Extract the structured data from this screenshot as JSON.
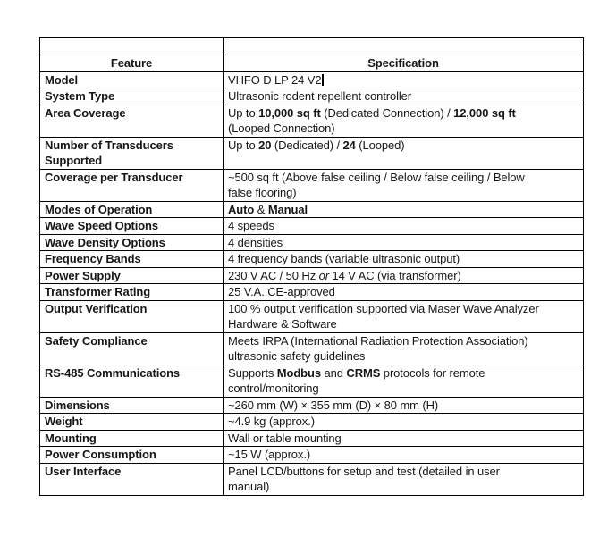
{
  "page": {
    "background": "#ffffff"
  },
  "table": {
    "border_color": "#000000",
    "text_color": "#161616",
    "header": {
      "feature": "Feature",
      "specification": "Specification"
    },
    "cursor": {
      "location_row": "Model",
      "after_text": "VHFO D LP 24 V2"
    },
    "rows": [
      {
        "feature": "Model",
        "caret": true,
        "spec": [
          {
            "t": "VHFO D LP 24 V2"
          }
        ]
      },
      {
        "feature": "System Type",
        "spec": [
          {
            "t": "Ultrasonic rodent repellent controller"
          }
        ]
      },
      {
        "feature": "Area Coverage",
        "spec": [
          {
            "t": "Up to "
          },
          {
            "t": "10,000 sq ft",
            "b": 1
          },
          {
            "t": " (Dedicated Connection) / "
          },
          {
            "t": "12,000 sq ft",
            "b": 1
          },
          {
            "br": 1
          },
          {
            "t": "(Looped Connection)"
          }
        ]
      },
      {
        "feature": "Number of Transducers Supported",
        "spec": [
          {
            "t": "Up to "
          },
          {
            "t": "20",
            "b": 1
          },
          {
            "t": " (Dedicated) / "
          },
          {
            "t": "24",
            "b": 1
          },
          {
            "t": " (Looped)"
          }
        ]
      },
      {
        "feature": "Coverage per Transducer",
        "spec": [
          {
            "t": "~500 sq ft (Above false ceiling / Below false ceiling / Below"
          },
          {
            "br": 1
          },
          {
            "t": "false flooring)"
          }
        ]
      },
      {
        "feature": "Modes of Operation",
        "spec": [
          {
            "t": "Auto",
            "b": 1
          },
          {
            "t": " & "
          },
          {
            "t": "Manual",
            "b": 1
          }
        ]
      },
      {
        "feature": "Wave Speed Options",
        "spec": [
          {
            "t": "4 speeds"
          }
        ]
      },
      {
        "feature": "Wave Density Options",
        "spec": [
          {
            "t": "4 densities"
          }
        ]
      },
      {
        "feature": "Frequency Bands",
        "spec": [
          {
            "t": "4 frequency bands (variable ultrasonic output)"
          }
        ]
      },
      {
        "feature": "Power Supply",
        "spec": [
          {
            "t": "230 V AC / 50 Hz "
          },
          {
            "t": "or",
            "i": 1
          },
          {
            "t": " 14 V AC (via transformer)"
          }
        ]
      },
      {
        "feature": "Transformer Rating",
        "spec": [
          {
            "t": "25 V.A. CE-approved"
          }
        ]
      },
      {
        "feature": "Output Verification",
        "spec": [
          {
            "t": "100 % output verification supported via Maser Wave Analyzer"
          },
          {
            "br": 1
          },
          {
            "t": "Hardware & Software"
          }
        ]
      },
      {
        "feature": "Safety Compliance",
        "spec": [
          {
            "t": "Meets IRPA (International Radiation Protection Association)"
          },
          {
            "br": 1
          },
          {
            "t": "ultrasonic safety guidelines"
          }
        ]
      },
      {
        "feature": "RS-485 Communications",
        "spec": [
          {
            "t": "Supports "
          },
          {
            "t": "Modbus",
            "b": 1
          },
          {
            "t": " and "
          },
          {
            "t": "CRMS",
            "b": 1
          },
          {
            "t": " protocols for remote"
          },
          {
            "br": 1
          },
          {
            "t": "control/monitoring"
          }
        ]
      },
      {
        "feature": "Dimensions",
        "spec": [
          {
            "t": "~260 mm (W) × 355 mm (D) × 80 mm (H)"
          }
        ]
      },
      {
        "feature": "Weight",
        "spec": [
          {
            "t": "~4.9 kg (approx.)"
          }
        ]
      },
      {
        "feature": "Mounting",
        "spec": [
          {
            "t": "Wall or table mounting"
          }
        ]
      },
      {
        "feature": "Power Consumption",
        "spec": [
          {
            "t": "~15 W (approx.)"
          }
        ]
      },
      {
        "feature": "User Interface",
        "spec": [
          {
            "t": "Panel LCD/buttons for setup and test (detailed in user"
          },
          {
            "br": 1
          },
          {
            "t": "manual)"
          }
        ]
      }
    ]
  }
}
